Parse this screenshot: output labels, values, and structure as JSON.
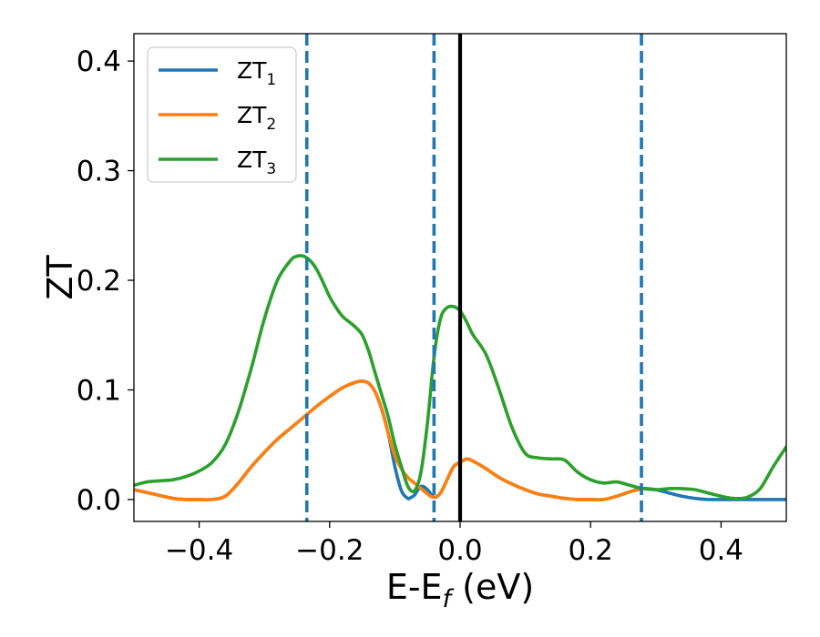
{
  "chart_data": {
    "type": "line",
    "title": "",
    "xlabel": "E-E_f (eV)",
    "xlabel_parts": [
      "E-E",
      "f",
      " (eV)"
    ],
    "ylabel": "ZT",
    "xlim": [
      -0.5,
      0.5
    ],
    "ylim": [
      -0.02,
      0.425
    ],
    "xticks": [
      -0.4,
      -0.2,
      0.0,
      0.2,
      0.4
    ],
    "xtick_labels": [
      "−0.4",
      "−0.2",
      "0.0",
      "0.2",
      "0.4"
    ],
    "yticks": [
      0.0,
      0.1,
      0.2,
      0.3,
      0.4
    ],
    "ytick_labels": [
      "0.0",
      "0.1",
      "0.2",
      "0.3",
      "0.4"
    ],
    "grid": false,
    "legend_position": "top-left",
    "vertical_lines": [
      {
        "x": -0.235,
        "color": "#1f77b4",
        "style": "dashed"
      },
      {
        "x": -0.04,
        "color": "#1f77b4",
        "style": "dashed"
      },
      {
        "x": 0.0,
        "color": "#000000",
        "style": "solid"
      },
      {
        "x": 0.278,
        "color": "#1f77b4",
        "style": "dashed"
      }
    ],
    "series": [
      {
        "name": "ZT1",
        "name_base": "ZT",
        "name_sub": "1",
        "color": "#1f77b4",
        "x": [
          -0.5,
          -0.47,
          -0.44,
          -0.42,
          -0.4,
          -0.38,
          -0.36,
          -0.34,
          -0.32,
          -0.3,
          -0.28,
          -0.26,
          -0.24,
          -0.22,
          -0.2,
          -0.18,
          -0.16,
          -0.15,
          -0.14,
          -0.13,
          -0.12,
          -0.11,
          -0.1,
          -0.09,
          -0.08,
          -0.075,
          -0.07,
          -0.06,
          -0.05,
          -0.04,
          -0.03,
          -0.02,
          -0.01,
          0.0,
          0.01,
          0.02,
          0.04,
          0.06,
          0.08,
          0.1,
          0.12,
          0.14,
          0.16,
          0.18,
          0.2,
          0.22,
          0.24,
          0.26,
          0.28,
          0.3,
          0.32,
          0.34,
          0.36,
          0.38,
          0.4,
          0.42,
          0.44,
          0.46,
          0.48,
          0.5
        ],
        "y": [
          0.009,
          0.005,
          0.001,
          0.0,
          0.0,
          0.0,
          0.003,
          0.015,
          0.03,
          0.043,
          0.055,
          0.065,
          0.075,
          0.085,
          0.094,
          0.102,
          0.107,
          0.108,
          0.106,
          0.098,
          0.082,
          0.06,
          0.03,
          0.008,
          0.001,
          0.002,
          0.004,
          0.012,
          0.009,
          0.002,
          0.006,
          0.018,
          0.03,
          0.034,
          0.037,
          0.035,
          0.028,
          0.02,
          0.014,
          0.009,
          0.005,
          0.003,
          0.001,
          0.0,
          0.0,
          0.0,
          0.003,
          0.007,
          0.01,
          0.009,
          0.006,
          0.003,
          0.001,
          0.0,
          0.0,
          0.0,
          0.0,
          0.0,
          0.0,
          0.0
        ]
      },
      {
        "name": "ZT2",
        "name_base": "ZT",
        "name_sub": "2",
        "color": "#ff7f0e",
        "x": [
          -0.5,
          -0.47,
          -0.44,
          -0.42,
          -0.4,
          -0.38,
          -0.36,
          -0.34,
          -0.32,
          -0.3,
          -0.28,
          -0.26,
          -0.24,
          -0.22,
          -0.2,
          -0.18,
          -0.16,
          -0.15,
          -0.14,
          -0.13,
          -0.12,
          -0.11,
          -0.1,
          -0.09,
          -0.08,
          -0.07,
          -0.06,
          -0.05,
          -0.04,
          -0.03,
          -0.02,
          -0.01,
          0.0,
          0.01,
          0.02,
          0.04,
          0.06,
          0.08,
          0.1,
          0.12,
          0.14,
          0.16,
          0.18,
          0.2,
          0.22,
          0.24,
          0.26,
          0.28
        ],
        "y": [
          0.009,
          0.005,
          0.001,
          0.0,
          0.0,
          0.0,
          0.003,
          0.015,
          0.03,
          0.043,
          0.055,
          0.065,
          0.075,
          0.085,
          0.094,
          0.102,
          0.107,
          0.108,
          0.106,
          0.098,
          0.082,
          0.06,
          0.04,
          0.028,
          0.02,
          0.015,
          0.01,
          0.005,
          0.002,
          0.006,
          0.018,
          0.03,
          0.034,
          0.037,
          0.035,
          0.028,
          0.02,
          0.014,
          0.009,
          0.005,
          0.003,
          0.001,
          0.0,
          0.0,
          0.0,
          0.003,
          0.007,
          0.01
        ]
      },
      {
        "name": "ZT3",
        "name_base": "ZT",
        "name_sub": "3",
        "color": "#2ca02c",
        "x": [
          -0.5,
          -0.48,
          -0.46,
          -0.44,
          -0.42,
          -0.4,
          -0.38,
          -0.36,
          -0.34,
          -0.32,
          -0.3,
          -0.28,
          -0.26,
          -0.25,
          -0.24,
          -0.23,
          -0.22,
          -0.21,
          -0.2,
          -0.19,
          -0.18,
          -0.17,
          -0.16,
          -0.15,
          -0.14,
          -0.13,
          -0.12,
          -0.11,
          -0.1,
          -0.09,
          -0.08,
          -0.07,
          -0.06,
          -0.05,
          -0.04,
          -0.03,
          -0.02,
          -0.01,
          0.0,
          0.01,
          0.02,
          0.04,
          0.06,
          0.08,
          0.1,
          0.12,
          0.14,
          0.16,
          0.18,
          0.2,
          0.22,
          0.24,
          0.26,
          0.28,
          0.3,
          0.32,
          0.34,
          0.36,
          0.38,
          0.4,
          0.42,
          0.44,
          0.46,
          0.48,
          0.5
        ],
        "y": [
          0.013,
          0.016,
          0.017,
          0.018,
          0.021,
          0.026,
          0.034,
          0.05,
          0.08,
          0.12,
          0.165,
          0.2,
          0.218,
          0.222,
          0.222,
          0.218,
          0.21,
          0.198,
          0.185,
          0.175,
          0.167,
          0.162,
          0.157,
          0.15,
          0.135,
          0.115,
          0.095,
          0.075,
          0.05,
          0.03,
          0.012,
          0.008,
          0.025,
          0.07,
          0.13,
          0.165,
          0.175,
          0.176,
          0.172,
          0.162,
          0.15,
          0.132,
          0.1,
          0.065,
          0.042,
          0.038,
          0.037,
          0.036,
          0.025,
          0.018,
          0.015,
          0.016,
          0.013,
          0.01,
          0.009,
          0.01,
          0.01,
          0.009,
          0.006,
          0.003,
          0.001,
          0.002,
          0.01,
          0.03,
          0.048
        ]
      }
    ]
  }
}
